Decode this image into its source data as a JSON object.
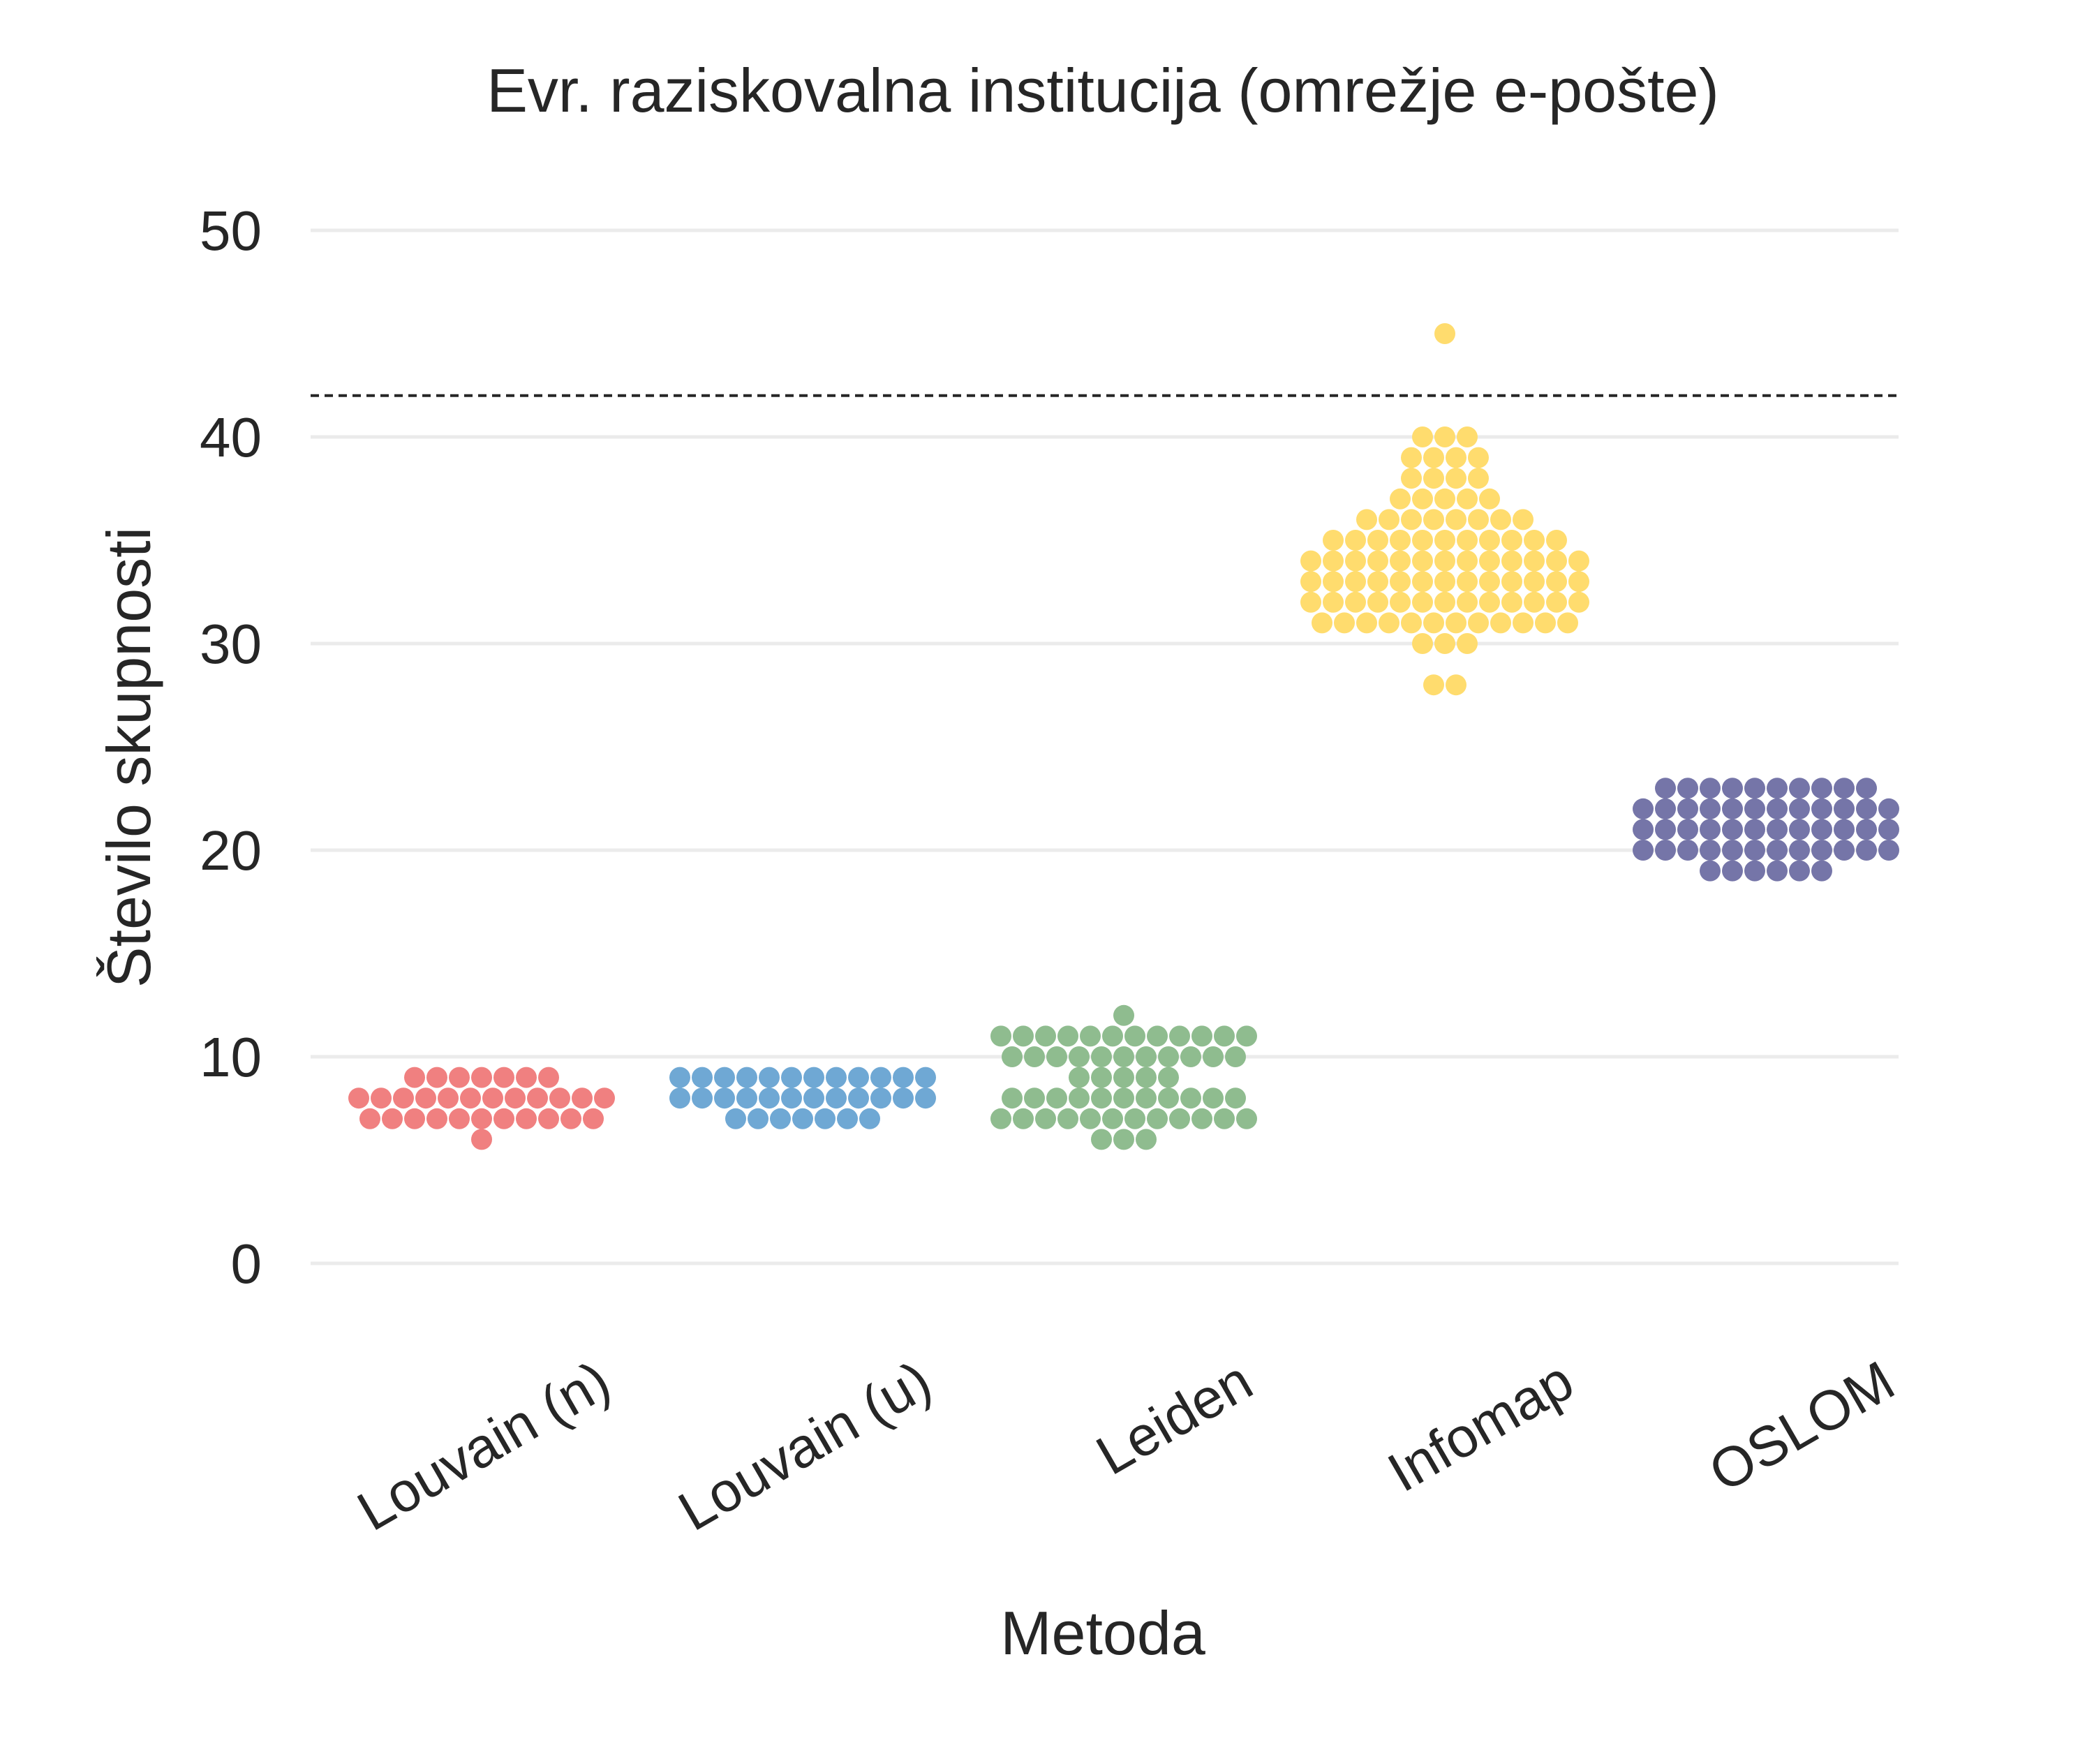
{
  "chart_data": {
    "type": "swarm",
    "title": "Evr. raziskovalna institucija  (omrežje e-pošte)",
    "xlabel": "Metoda",
    "ylabel": "Število skupnosti",
    "ylim": [
      -4,
      54
    ],
    "yticks": [
      0,
      10,
      20,
      30,
      40,
      50
    ],
    "grid": "horizontal",
    "reference_line": 42,
    "categories": [
      "Louvain (n)",
      "Louvain (u)",
      "Leiden",
      "Infomap",
      "OSLOM"
    ],
    "colors": [
      "#f08080",
      "#6fa8d4",
      "#8fbc8f",
      "#ffdc6e",
      "#7575a8"
    ],
    "counts": [
      {
        "6": 1,
        "7": 11,
        "8": 12,
        "9": 7
      },
      {
        "7": 7,
        "8": 12,
        "9": 12
      },
      {
        "6": 3,
        "7": 12,
        "8": 11,
        "9": 5,
        "10": 11,
        "11": 12,
        "12": 1
      },
      {
        "28": 2,
        "30": 3,
        "31": 12,
        "32": 13,
        "33": 13,
        "34": 13,
        "35": 11,
        "36": 8,
        "37": 5,
        "38": 4,
        "39": 4,
        "40": 3,
        "45": 1
      },
      {
        "19": 6,
        "20": 12,
        "21": 12,
        "22": 12,
        "23": 10
      }
    ]
  }
}
